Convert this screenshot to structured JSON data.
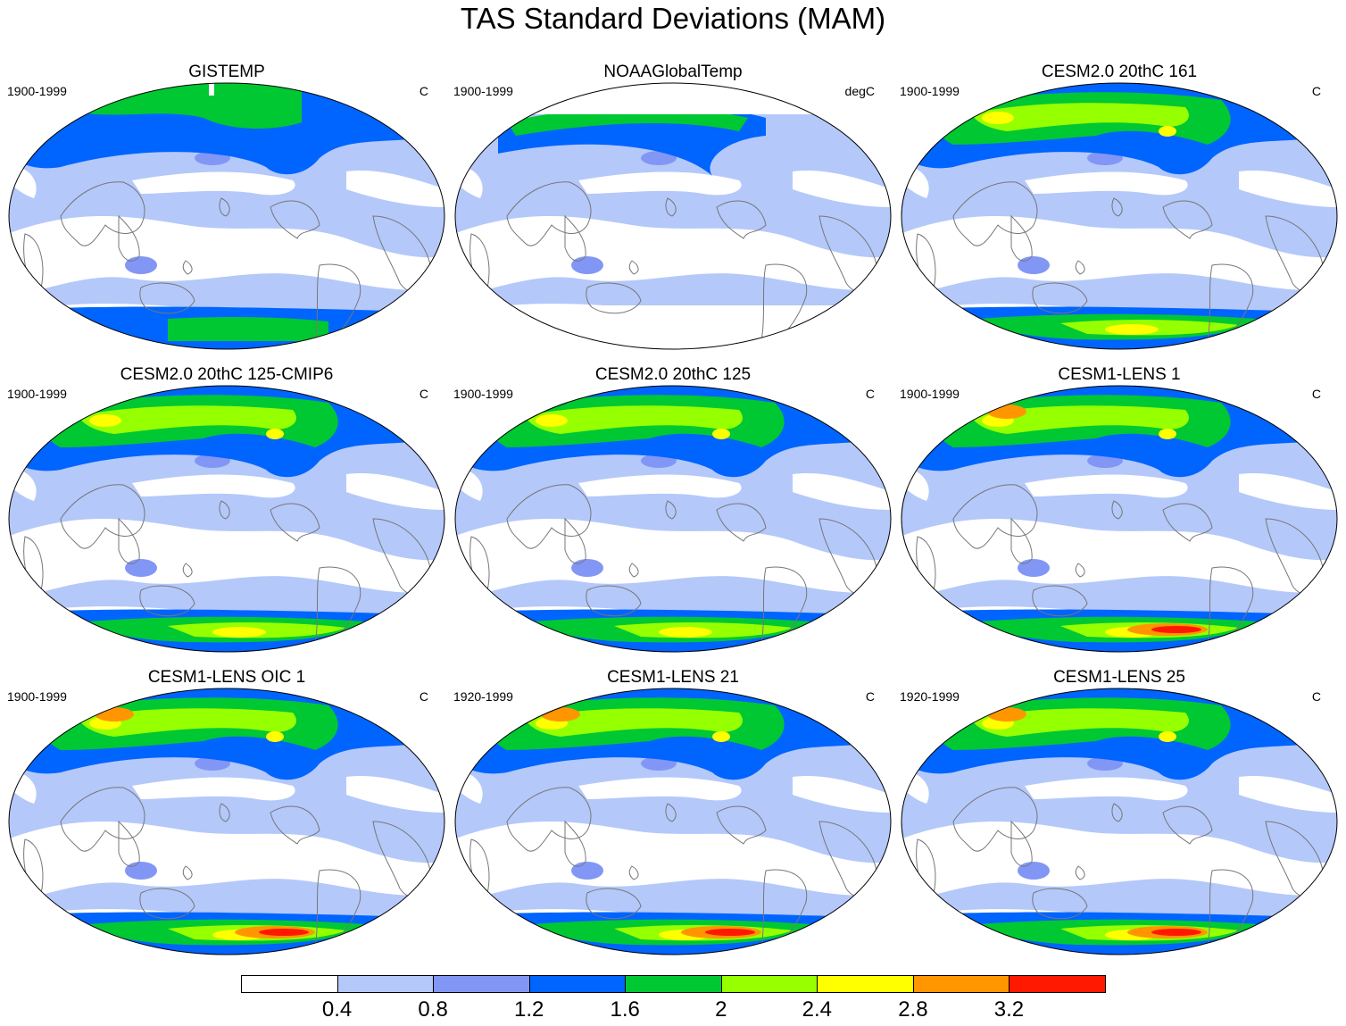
{
  "title": "TAS Standard Deviations (MAM)",
  "panels": [
    {
      "title": "GISTEMP",
      "period": "1900-1999",
      "units": "C",
      "style": "gistemp"
    },
    {
      "title": "NOAAGlobalTemp",
      "period": "1900-1999",
      "units": "degC",
      "style": "noaa"
    },
    {
      "title": "CESM2.0 20thC 161",
      "period": "1900-1999",
      "units": "C",
      "style": "cesm2"
    },
    {
      "title": "CESM2.0 20thC 125-CMIP6",
      "period": "1900-1999",
      "units": "C",
      "style": "cesm2"
    },
    {
      "title": "CESM2.0 20thC 125",
      "period": "1900-1999",
      "units": "C",
      "style": "cesm2"
    },
    {
      "title": "CESM1-LENS 1",
      "period": "1900-1999",
      "units": "C",
      "style": "lens"
    },
    {
      "title": "CESM1-LENS OIC 1",
      "period": "1900-1999",
      "units": "C",
      "style": "lens"
    },
    {
      "title": "CESM1-LENS 21",
      "period": "1920-1999",
      "units": "C",
      "style": "lens"
    },
    {
      "title": "CESM1-LENS 25",
      "period": "1920-1999",
      "units": "C",
      "style": "lens"
    }
  ],
  "colorbar": {
    "colors": [
      "#ffffff",
      "#b4c8fa",
      "#8296f5",
      "#0064ff",
      "#00c832",
      "#96ff00",
      "#ffff00",
      "#ff9600",
      "#ff1900"
    ],
    "labels": [
      "0.4",
      "0.8",
      "1.2",
      "1.6",
      "2",
      "2.4",
      "2.8",
      "3.2"
    ]
  }
}
